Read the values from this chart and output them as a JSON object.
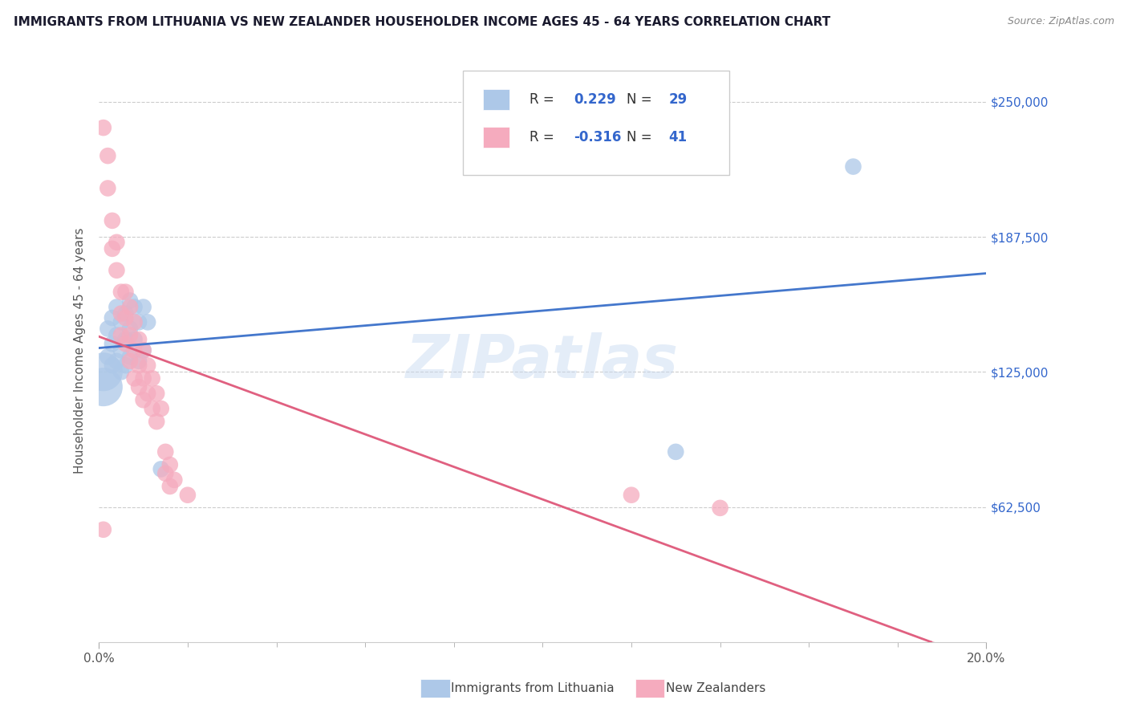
{
  "title": "IMMIGRANTS FROM LITHUANIA VS NEW ZEALANDER HOUSEHOLDER INCOME AGES 45 - 64 YEARS CORRELATION CHART",
  "source": "Source: ZipAtlas.com",
  "ylabel": "Householder Income Ages 45 - 64 years",
  "ytick_labels": [
    "$62,500",
    "$125,000",
    "$187,500",
    "$250,000"
  ],
  "ytick_values": [
    62500,
    125000,
    187500,
    250000
  ],
  "xmin": 0.0,
  "xmax": 0.2,
  "ymin": 0,
  "ymax": 270000,
  "watermark": "ZIPatlas",
  "legend1_label": "Immigrants from Lithuania",
  "legend2_label": "New Zealanders",
  "R_blue": 0.229,
  "N_blue": 29,
  "R_pink": -0.316,
  "N_pink": 41,
  "blue_color": "#adc8e8",
  "pink_color": "#f5abbe",
  "blue_line_color": "#4477cc",
  "pink_line_color": "#e06080",
  "blue_scatter": [
    [
      0.001,
      125000
    ],
    [
      0.002,
      145000
    ],
    [
      0.002,
      132000
    ],
    [
      0.003,
      150000
    ],
    [
      0.003,
      138000
    ],
    [
      0.003,
      128000
    ],
    [
      0.004,
      155000
    ],
    [
      0.004,
      142000
    ],
    [
      0.004,
      130000
    ],
    [
      0.005,
      148000
    ],
    [
      0.005,
      135000
    ],
    [
      0.005,
      125000
    ],
    [
      0.006,
      152000
    ],
    [
      0.006,
      140000
    ],
    [
      0.006,
      128000
    ],
    [
      0.007,
      158000
    ],
    [
      0.007,
      145000
    ],
    [
      0.007,
      132000
    ],
    [
      0.008,
      155000
    ],
    [
      0.008,
      140000
    ],
    [
      0.009,
      148000
    ],
    [
      0.009,
      130000
    ],
    [
      0.01,
      155000
    ],
    [
      0.01,
      135000
    ],
    [
      0.011,
      148000
    ],
    [
      0.014,
      80000
    ],
    [
      0.001,
      118000
    ],
    [
      0.17,
      220000
    ],
    [
      0.13,
      88000
    ]
  ],
  "pink_scatter": [
    [
      0.001,
      238000
    ],
    [
      0.002,
      225000
    ],
    [
      0.002,
      210000
    ],
    [
      0.003,
      195000
    ],
    [
      0.003,
      182000
    ],
    [
      0.004,
      185000
    ],
    [
      0.004,
      172000
    ],
    [
      0.005,
      162000
    ],
    [
      0.005,
      152000
    ],
    [
      0.005,
      142000
    ],
    [
      0.006,
      162000
    ],
    [
      0.006,
      150000
    ],
    [
      0.006,
      138000
    ],
    [
      0.007,
      155000
    ],
    [
      0.007,
      142000
    ],
    [
      0.007,
      130000
    ],
    [
      0.008,
      148000
    ],
    [
      0.008,
      135000
    ],
    [
      0.008,
      122000
    ],
    [
      0.009,
      140000
    ],
    [
      0.009,
      128000
    ],
    [
      0.009,
      118000
    ],
    [
      0.01,
      135000
    ],
    [
      0.01,
      122000
    ],
    [
      0.01,
      112000
    ],
    [
      0.011,
      128000
    ],
    [
      0.011,
      115000
    ],
    [
      0.012,
      122000
    ],
    [
      0.012,
      108000
    ],
    [
      0.013,
      115000
    ],
    [
      0.013,
      102000
    ],
    [
      0.014,
      108000
    ],
    [
      0.015,
      88000
    ],
    [
      0.015,
      78000
    ],
    [
      0.016,
      82000
    ],
    [
      0.016,
      72000
    ],
    [
      0.017,
      75000
    ],
    [
      0.02,
      68000
    ],
    [
      0.12,
      68000
    ],
    [
      0.14,
      62000
    ],
    [
      0.001,
      52000
    ]
  ]
}
